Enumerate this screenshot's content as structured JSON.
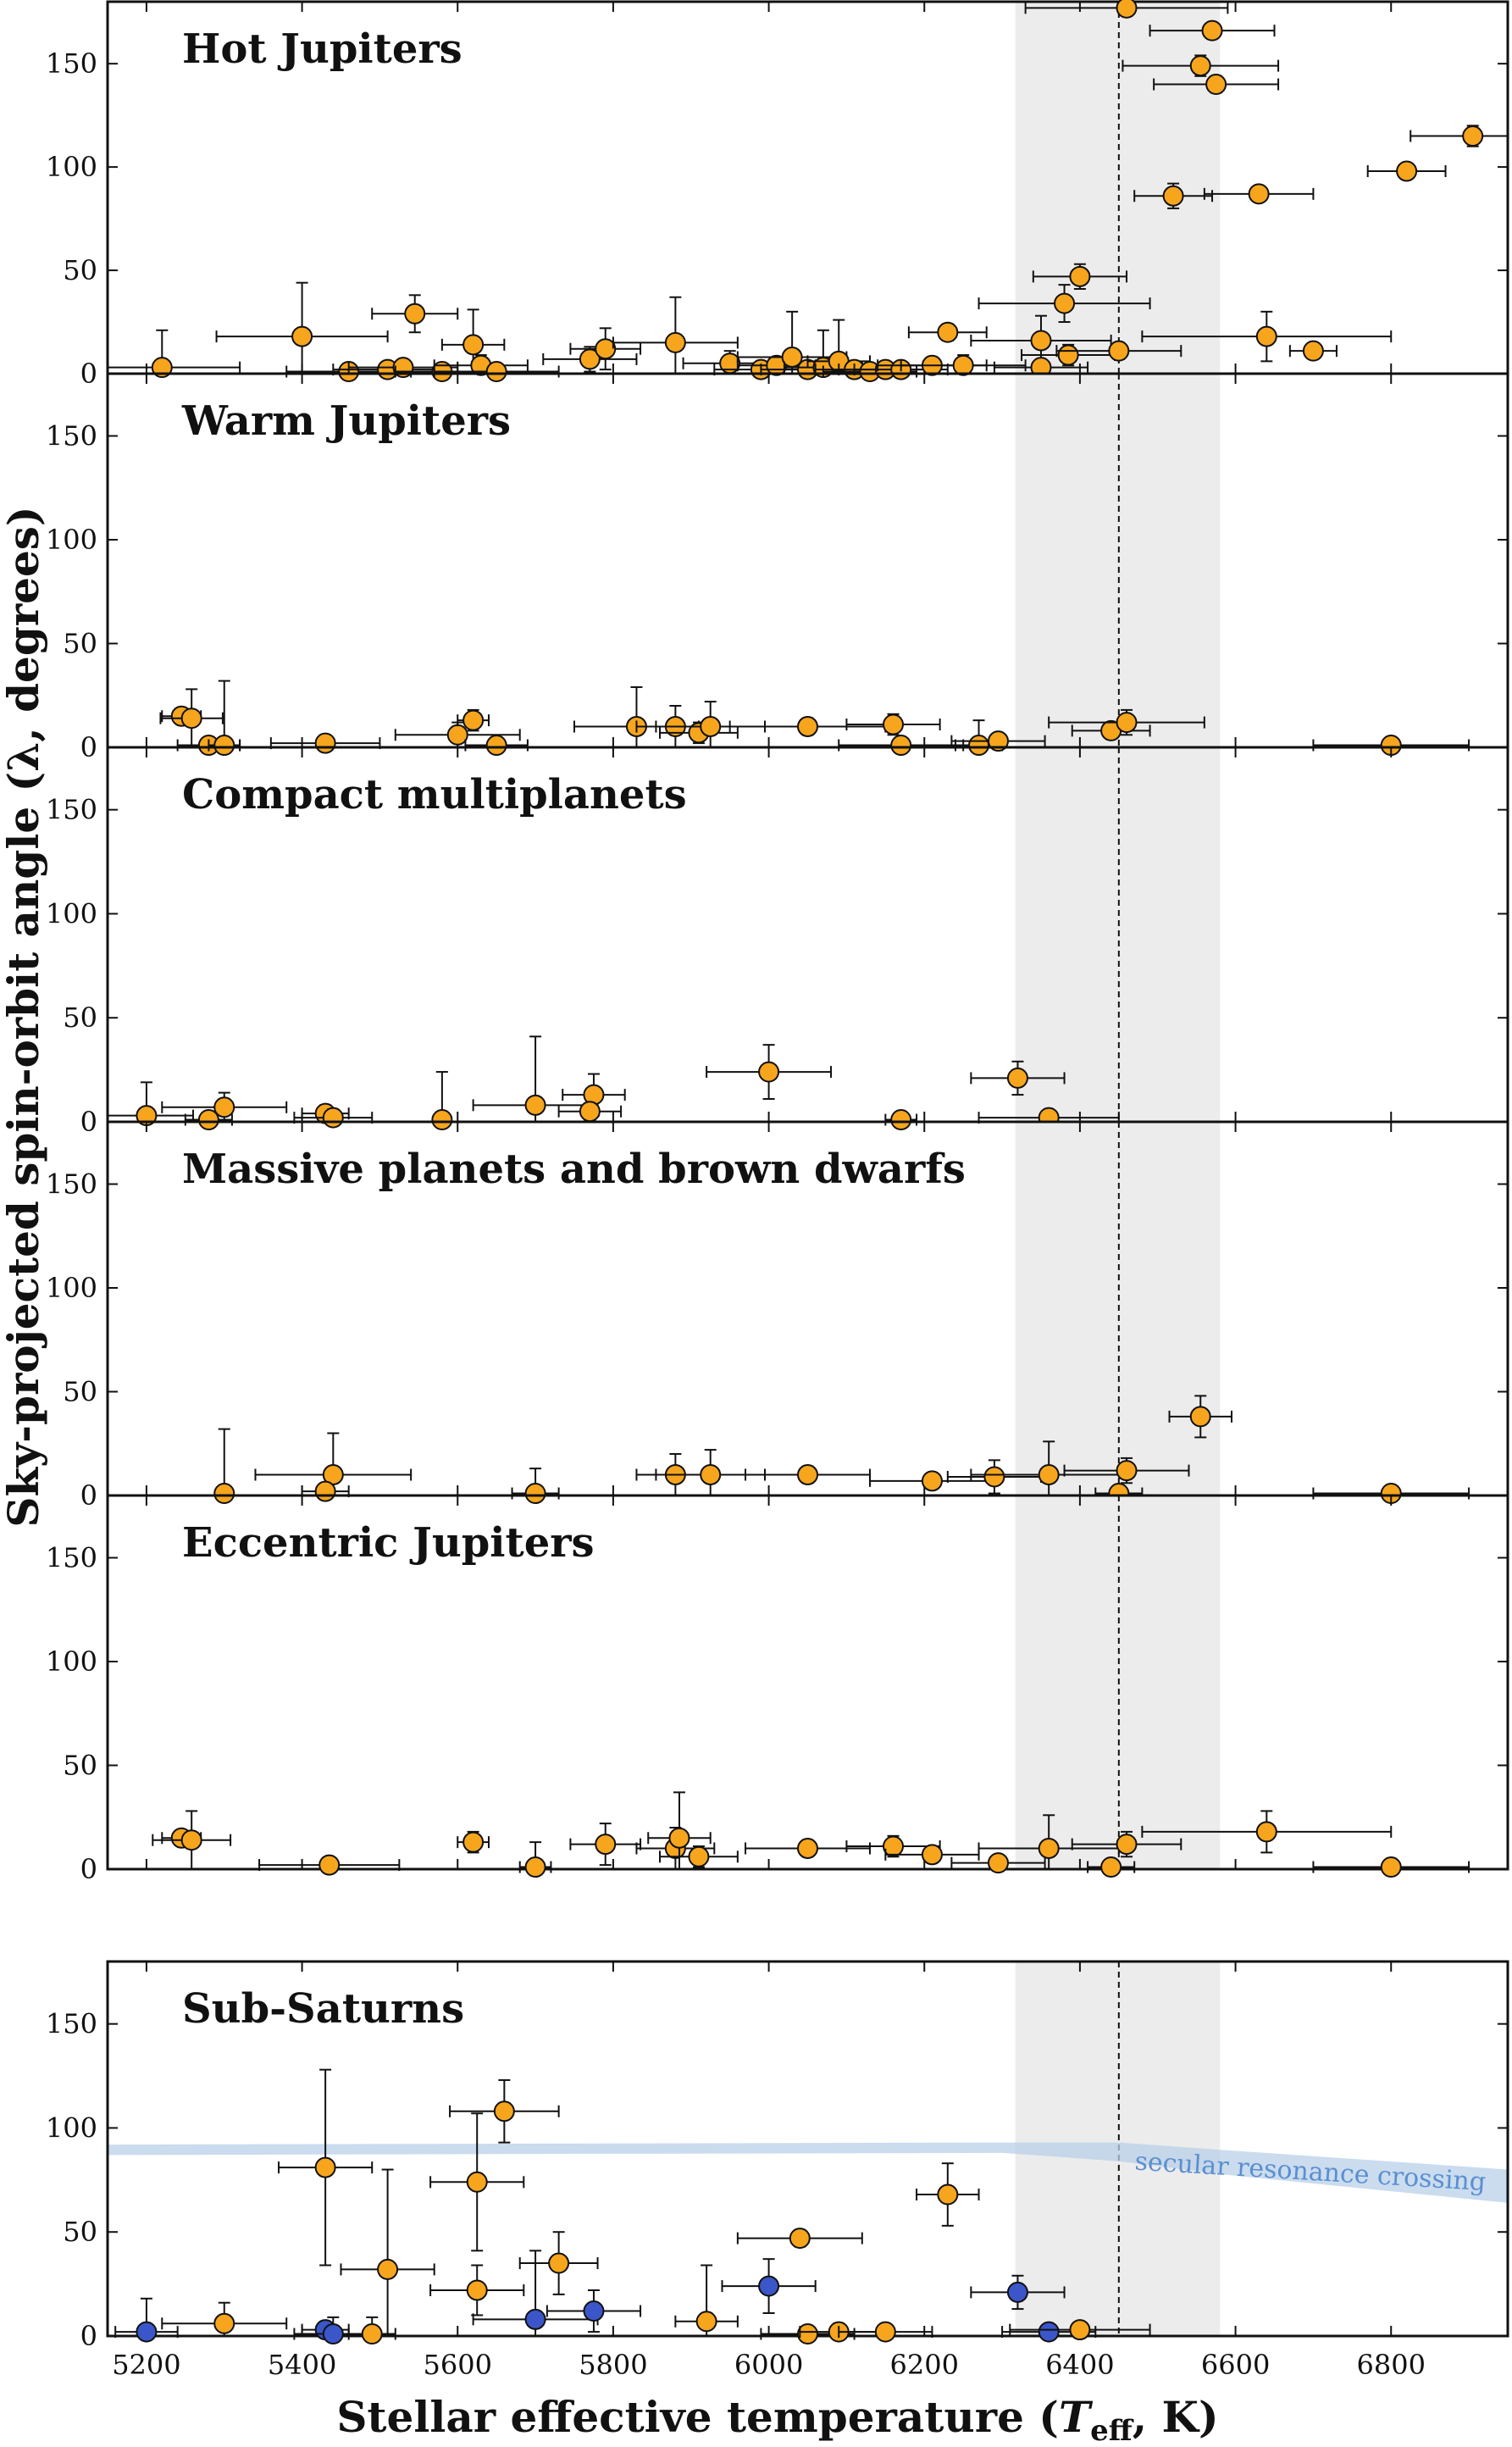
{
  "chart_data": {
    "type": "scatter",
    "xlabel": "Stellar effective temperature (T_eff, K)",
    "xlabel_parts": {
      "pre": "Stellar effective temperature (",
      "var": "T",
      "sub": "eff",
      "post": ", K)"
    },
    "ylabel": "Sky-projected spin-orbit angle (λ, degrees)",
    "xlim": [
      5150,
      6950
    ],
    "ylim": [
      0,
      180
    ],
    "x_ticks": [
      5200,
      5400,
      5600,
      5800,
      6000,
      6200,
      6400,
      6600,
      6800
    ],
    "y_ticks": [
      0,
      50,
      100,
      150
    ],
    "shaded_band": [
      6317,
      6580
    ],
    "vertical_line": 6450,
    "colors": {
      "aligned": "#f6a51d",
      "misaligned": "#3a56c8",
      "band": "#ececec",
      "resonance": "#b8d0e8"
    },
    "panels": [
      {
        "title": "Hot Jupiters",
        "points": [
          {
            "x": 5220,
            "y": 3,
            "xerr": 100,
            "yerr": 18
          },
          {
            "x": 5400,
            "y": 18,
            "xerr": 110,
            "yerr": 26
          },
          {
            "x": 5460,
            "y": 1,
            "xerr": 80,
            "yerr": 2
          },
          {
            "x": 5510,
            "y": 2,
            "xerr": 70,
            "yerr": 3
          },
          {
            "x": 5545,
            "y": 29,
            "xerr": 55,
            "yerr": 9
          },
          {
            "x": 5530,
            "y": 3,
            "xerr": 70,
            "yerr": 3
          },
          {
            "x": 5580,
            "y": 1,
            "xerr": 60,
            "yerr": 2
          },
          {
            "x": 5620,
            "y": 14,
            "xerr": 40,
            "yerr": 17
          },
          {
            "x": 5630,
            "y": 4,
            "xerr": 60,
            "yerr": 5
          },
          {
            "x": 5650,
            "y": 1,
            "xerr": 80,
            "yerr": 2
          },
          {
            "x": 5770,
            "y": 7,
            "xerr": 60,
            "yerr": 6
          },
          {
            "x": 5790,
            "y": 12,
            "xerr": 45,
            "yerr": 10
          },
          {
            "x": 5880,
            "y": 15,
            "xerr": 80,
            "yerr": 22
          },
          {
            "x": 5950,
            "y": 5,
            "xerr": 60,
            "yerr": 6
          },
          {
            "x": 5990,
            "y": 2,
            "xerr": 60,
            "yerr": 3
          },
          {
            "x": 6010,
            "y": 4,
            "xerr": 50,
            "yerr": 4
          },
          {
            "x": 6030,
            "y": 8,
            "xerr": 70,
            "yerr": 22
          },
          {
            "x": 6050,
            "y": 2,
            "xerr": 60,
            "yerr": 3
          },
          {
            "x": 6070,
            "y": 3,
            "xerr": 50,
            "yerr": 18
          },
          {
            "x": 6090,
            "y": 6,
            "xerr": 40,
            "yerr": 20
          },
          {
            "x": 6110,
            "y": 2,
            "xerr": 50,
            "yerr": 3
          },
          {
            "x": 6130,
            "y": 1,
            "xerr": 60,
            "yerr": 2
          },
          {
            "x": 6150,
            "y": 2,
            "xerr": 60,
            "yerr": 3
          },
          {
            "x": 6170,
            "y": 2,
            "xerr": 60,
            "yerr": 3
          },
          {
            "x": 6210,
            "y": 4,
            "xerr": 70,
            "yerr": 4
          },
          {
            "x": 6230,
            "y": 20,
            "xerr": 50,
            "yerr": 4
          },
          {
            "x": 6250,
            "y": 4,
            "xerr": 80,
            "yerr": 5
          },
          {
            "x": 6350,
            "y": 16,
            "xerr": 90,
            "yerr": 12
          },
          {
            "x": 6350,
            "y": 3,
            "xerr": 60,
            "yerr": 3
          },
          {
            "x": 6380,
            "y": 34,
            "xerr": 110,
            "yerr": 9
          },
          {
            "x": 6385,
            "y": 9,
            "xerr": 60,
            "yerr": 5
          },
          {
            "x": 6400,
            "y": 47,
            "xerr": 60,
            "yerr": 6
          },
          {
            "x": 6450,
            "y": 11,
            "xerr": 80,
            "yerr": 4
          },
          {
            "x": 6460,
            "y": 177,
            "xerr": 130,
            "yerr": 4
          },
          {
            "x": 6570,
            "y": 166,
            "xerr": 80,
            "yerr": 3
          },
          {
            "x": 6555,
            "y": 149,
            "xerr": 100,
            "yerr": 5
          },
          {
            "x": 6575,
            "y": 140,
            "xerr": 80,
            "yerr": 4
          },
          {
            "x": 6520,
            "y": 86,
            "xerr": 50,
            "yerr": 6
          },
          {
            "x": 6630,
            "y": 87,
            "xerr": 70,
            "yerr": 2
          },
          {
            "x": 6640,
            "y": 18,
            "xerr": 160,
            "yerr": 12
          },
          {
            "x": 6700,
            "y": 11,
            "xerr": 30,
            "yerr": 3
          },
          {
            "x": 6820,
            "y": 98,
            "xerr": 50,
            "yerr": 3
          },
          {
            "x": 6905,
            "y": 115,
            "xerr": 80,
            "yerr": 5
          }
        ]
      },
      {
        "title": "Warm Jupiters",
        "points": [
          {
            "x": 5245,
            "y": 15,
            "xerr": 25,
            "yerr": 3
          },
          {
            "x": 5258,
            "y": 14,
            "xerr": 40,
            "yerr": 14
          },
          {
            "x": 5280,
            "y": 1,
            "xerr": 40,
            "yerr": 2
          },
          {
            "x": 5300,
            "y": 1,
            "xerr": 20,
            "yerr": 31
          },
          {
            "x": 5430,
            "y": 2,
            "xerr": 70,
            "yerr": 2
          },
          {
            "x": 5600,
            "y": 6,
            "xerr": 80,
            "yerr": 6
          },
          {
            "x": 5620,
            "y": 13,
            "xerr": 20,
            "yerr": 5
          },
          {
            "x": 5650,
            "y": 1,
            "xerr": 40,
            "yerr": 2
          },
          {
            "x": 5830,
            "y": 10,
            "xerr": 80,
            "yerr": 19
          },
          {
            "x": 5880,
            "y": 10,
            "xerr": 50,
            "yerr": 10
          },
          {
            "x": 5910,
            "y": 7,
            "xerr": 50,
            "yerr": 5
          },
          {
            "x": 5925,
            "y": 10,
            "xerr": 70,
            "yerr": 12
          },
          {
            "x": 6050,
            "y": 10,
            "xerr": 100,
            "yerr": 4
          },
          {
            "x": 6160,
            "y": 11,
            "xerr": 60,
            "yerr": 5
          },
          {
            "x": 6170,
            "y": 1,
            "xerr": 80,
            "yerr": 2
          },
          {
            "x": 6270,
            "y": 1,
            "xerr": 30,
            "yerr": 12
          },
          {
            "x": 6295,
            "y": 3,
            "xerr": 60,
            "yerr": 3
          },
          {
            "x": 6440,
            "y": 8,
            "xerr": 50,
            "yerr": 3
          },
          {
            "x": 6460,
            "y": 12,
            "xerr": 100,
            "yerr": 6
          },
          {
            "x": 6800,
            "y": 1,
            "xerr": 100,
            "yerr": 2
          }
        ]
      },
      {
        "title": "Compact multiplanets",
        "points": [
          {
            "x": 5200,
            "y": 3,
            "xerr": 60,
            "yerr": 16
          },
          {
            "x": 5280,
            "y": 1,
            "xerr": 30,
            "yerr": 2
          },
          {
            "x": 5300,
            "y": 7,
            "xerr": 80,
            "yerr": 7
          },
          {
            "x": 5430,
            "y": 4,
            "xerr": 30,
            "yerr": 4
          },
          {
            "x": 5440,
            "y": 2,
            "xerr": 50,
            "yerr": 4
          },
          {
            "x": 5580,
            "y": 1,
            "xerr": 10,
            "yerr": 23
          },
          {
            "x": 5700,
            "y": 8,
            "xerr": 80,
            "yerr": 33
          },
          {
            "x": 5775,
            "y": 13,
            "xerr": 40,
            "yerr": 10
          },
          {
            "x": 5770,
            "y": 5,
            "xerr": 40,
            "yerr": 4
          },
          {
            "x": 6000,
            "y": 24,
            "xerr": 80,
            "yerr": 13
          },
          {
            "x": 6170,
            "y": 1,
            "xerr": 20,
            "yerr": 2
          },
          {
            "x": 6320,
            "y": 21,
            "xerr": 60,
            "yerr": 8
          },
          {
            "x": 6360,
            "y": 2,
            "xerr": 90,
            "yerr": 3
          }
        ]
      },
      {
        "title": "Massive planets and brown dwarfs",
        "points": [
          {
            "x": 5300,
            "y": 1,
            "xerr": 10,
            "yerr": 31
          },
          {
            "x": 5440,
            "y": 10,
            "xerr": 100,
            "yerr": 20
          },
          {
            "x": 5430,
            "y": 2,
            "xerr": 30,
            "yerr": 3
          },
          {
            "x": 5700,
            "y": 1,
            "xerr": 30,
            "yerr": 12
          },
          {
            "x": 5880,
            "y": 10,
            "xerr": 50,
            "yerr": 10
          },
          {
            "x": 5925,
            "y": 10,
            "xerr": 70,
            "yerr": 12
          },
          {
            "x": 6050,
            "y": 10,
            "xerr": 80,
            "yerr": 4
          },
          {
            "x": 6210,
            "y": 7,
            "xerr": 80,
            "yerr": 3
          },
          {
            "x": 6290,
            "y": 9,
            "xerr": 60,
            "yerr": 8
          },
          {
            "x": 6360,
            "y": 10,
            "xerr": 100,
            "yerr": 16
          },
          {
            "x": 6460,
            "y": 12,
            "xerr": 80,
            "yerr": 6
          },
          {
            "x": 6450,
            "y": 1,
            "xerr": 30,
            "yerr": 2
          },
          {
            "x": 6555,
            "y": 38,
            "xerr": 40,
            "yerr": 10
          },
          {
            "x": 6800,
            "y": 1,
            "xerr": 100,
            "yerr": 2
          }
        ]
      },
      {
        "title": "Eccentric Jupiters",
        "points": [
          {
            "x": 5245,
            "y": 15,
            "xerr": 25,
            "yerr": 3
          },
          {
            "x": 5258,
            "y": 14,
            "xerr": 50,
            "yerr": 14
          },
          {
            "x": 5435,
            "y": 2,
            "xerr": 90,
            "yerr": 2
          },
          {
            "x": 5620,
            "y": 13,
            "xerr": 20,
            "yerr": 5
          },
          {
            "x": 5700,
            "y": 1,
            "xerr": 20,
            "yerr": 12
          },
          {
            "x": 5790,
            "y": 12,
            "xerr": 45,
            "yerr": 10
          },
          {
            "x": 5880,
            "y": 10,
            "xerr": 50,
            "yerr": 10
          },
          {
            "x": 5885,
            "y": 15,
            "xerr": 40,
            "yerr": 22
          },
          {
            "x": 5910,
            "y": 6,
            "xerr": 50,
            "yerr": 5
          },
          {
            "x": 6050,
            "y": 10,
            "xerr": 80,
            "yerr": 4
          },
          {
            "x": 6160,
            "y": 11,
            "xerr": 60,
            "yerr": 5
          },
          {
            "x": 6210,
            "y": 7,
            "xerr": 60,
            "yerr": 3
          },
          {
            "x": 6295,
            "y": 3,
            "xerr": 60,
            "yerr": 3
          },
          {
            "x": 6360,
            "y": 10,
            "xerr": 90,
            "yerr": 16
          },
          {
            "x": 6440,
            "y": 1,
            "xerr": 30,
            "yerr": 2
          },
          {
            "x": 6460,
            "y": 12,
            "xerr": 70,
            "yerr": 6
          },
          {
            "x": 6640,
            "y": 18,
            "xerr": 160,
            "yerr": 10
          },
          {
            "x": 6800,
            "y": 1,
            "xerr": 100,
            "yerr": 2
          }
        ]
      },
      {
        "title": "Sub-Saturns",
        "annotation": "secular resonance crossing",
        "resonance_band": {
          "x": [
            5150,
            6300,
            6450,
            6600,
            6950
          ],
          "upper": [
            92,
            93,
            93,
            89,
            80
          ],
          "lower": [
            87,
            88,
            84,
            77,
            64
          ]
        },
        "points": [
          {
            "x": 5200,
            "y": 2,
            "xerr": 40,
            "yerr": 16,
            "color": "misaligned"
          },
          {
            "x": 5300,
            "y": 6,
            "xerr": 80,
            "yerr": 10
          },
          {
            "x": 5430,
            "y": 81,
            "xerr": 60,
            "yerr": 47
          },
          {
            "x": 5430,
            "y": 3,
            "xerr": 30,
            "yerr": 3,
            "color": "misaligned"
          },
          {
            "x": 5440,
            "y": 1,
            "xerr": 50,
            "yerr": 8,
            "color": "misaligned"
          },
          {
            "x": 5490,
            "y": 1,
            "xerr": 30,
            "yerr": 8
          },
          {
            "x": 5510,
            "y": 32,
            "xerr": 60,
            "yerr": 48
          },
          {
            "x": 5625,
            "y": 74,
            "xerr": 60,
            "yerr": 33
          },
          {
            "x": 5625,
            "y": 22,
            "xerr": 60,
            "yerr": 12
          },
          {
            "x": 5660,
            "y": 108,
            "xerr": 70,
            "yerr": 15
          },
          {
            "x": 5700,
            "y": 8,
            "xerr": 80,
            "yerr": 33,
            "color": "misaligned"
          },
          {
            "x": 5730,
            "y": 35,
            "xerr": 50,
            "yerr": 15
          },
          {
            "x": 5775,
            "y": 12,
            "xerr": 60,
            "yerr": 10,
            "color": "misaligned"
          },
          {
            "x": 5920,
            "y": 7,
            "xerr": 40,
            "yerr": 27
          },
          {
            "x": 6000,
            "y": 24,
            "xerr": 60,
            "yerr": 13,
            "color": "misaligned"
          },
          {
            "x": 6040,
            "y": 47,
            "xerr": 80,
            "yerr": 4
          },
          {
            "x": 6050,
            "y": 1,
            "xerr": 60,
            "yerr": 2
          },
          {
            "x": 6090,
            "y": 2,
            "xerr": 50,
            "yerr": 4
          },
          {
            "x": 6150,
            "y": 2,
            "xerr": 60,
            "yerr": 3
          },
          {
            "x": 6230,
            "y": 68,
            "xerr": 40,
            "yerr": 15
          },
          {
            "x": 6320,
            "y": 21,
            "xerr": 60,
            "yerr": 8,
            "color": "misaligned"
          },
          {
            "x": 6360,
            "y": 2,
            "xerr": 60,
            "yerr": 3,
            "color": "misaligned"
          },
          {
            "x": 6400,
            "y": 3,
            "xerr": 90,
            "yerr": 3
          }
        ]
      }
    ]
  }
}
